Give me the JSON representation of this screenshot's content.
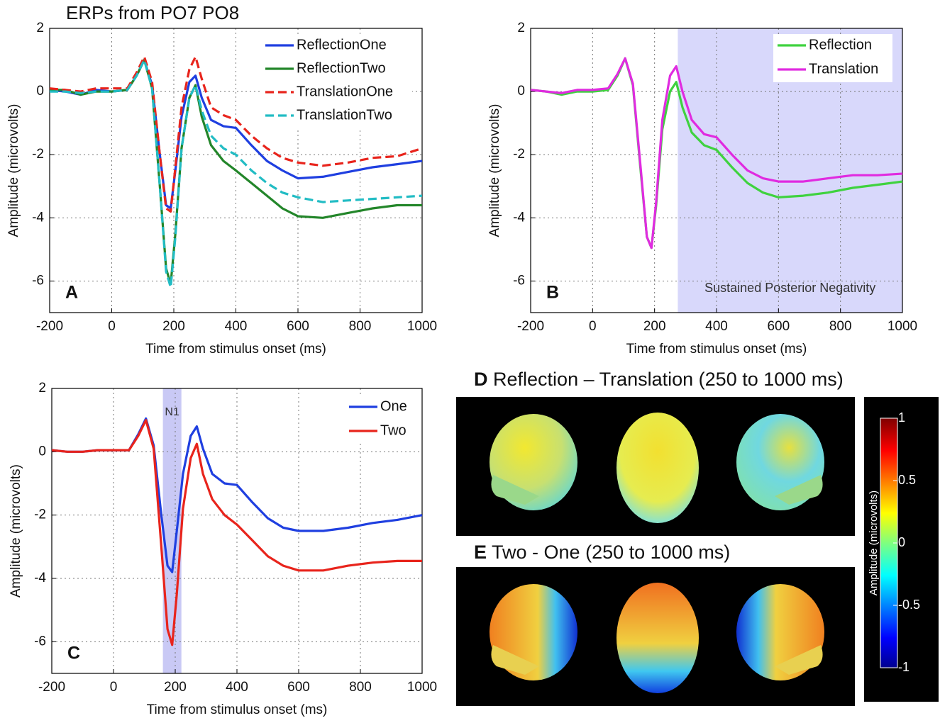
{
  "chart_data": [
    {
      "type": "line",
      "title": "ERPs from PO7 PO8",
      "panel_label": "A",
      "xlabel": "Time from stimulus onset (ms)",
      "ylabel": "Amplitude (microvolts)",
      "x": [
        -200,
        -150,
        -100,
        -50,
        0,
        50,
        80,
        105,
        130,
        155,
        175,
        190,
        205,
        225,
        250,
        270,
        290,
        320,
        360,
        400,
        450,
        500,
        550,
        600,
        680,
        760,
        840,
        920,
        1000
      ],
      "series": [
        {
          "name": "ReflectionOne",
          "color": "#1f3fe0",
          "linestyle": "solid",
          "values": [
            0.05,
            0,
            -0.1,
            0.05,
            0,
            0.05,
            0.5,
            1.0,
            0.2,
            -2.0,
            -3.6,
            -3.7,
            -2.5,
            -0.8,
            0.3,
            0.5,
            -0.2,
            -0.9,
            -1.1,
            -1.15,
            -1.7,
            -2.2,
            -2.5,
            -2.75,
            -2.7,
            -2.55,
            -2.4,
            -2.3,
            -2.2
          ]
        },
        {
          "name": "ReflectionTwo",
          "color": "#23862a",
          "linestyle": "solid",
          "values": [
            0.05,
            0.05,
            -0.1,
            0,
            0,
            0.05,
            0.5,
            1.0,
            0.1,
            -3,
            -5.6,
            -6.1,
            -4.5,
            -1.8,
            -0.2,
            0.2,
            -0.8,
            -1.7,
            -2.2,
            -2.5,
            -2.9,
            -3.3,
            -3.7,
            -3.95,
            -4.0,
            -3.85,
            -3.7,
            -3.6,
            -3.6
          ]
        },
        {
          "name": "TranslationOne",
          "color": "#e8241c",
          "linestyle": "dashed",
          "values": [
            0.1,
            0.05,
            0,
            0.1,
            0.1,
            0.1,
            0.6,
            1.1,
            0.3,
            -2.0,
            -3.7,
            -3.8,
            -2.4,
            -0.5,
            0.7,
            1.1,
            0.4,
            -0.5,
            -0.75,
            -0.9,
            -1.4,
            -1.8,
            -2.1,
            -2.25,
            -2.35,
            -2.25,
            -2.1,
            -2.05,
            -1.8
          ]
        },
        {
          "name": "TranslationTwo",
          "color": "#22bcc4",
          "linestyle": "dashed",
          "values": [
            0,
            0,
            -0.05,
            0,
            0,
            0.05,
            0.5,
            1.0,
            0.1,
            -3,
            -5.7,
            -6.2,
            -4.6,
            -1.8,
            -0.2,
            0.2,
            -0.6,
            -1.4,
            -1.8,
            -2.0,
            -2.5,
            -2.9,
            -3.2,
            -3.35,
            -3.5,
            -3.45,
            -3.4,
            -3.35,
            -3.3
          ]
        }
      ],
      "xlim": [
        -200,
        1000
      ],
      "xticks": [
        -200,
        0,
        200,
        400,
        600,
        800,
        1000
      ],
      "ylim": [
        -7,
        2
      ],
      "yticks": [
        -6,
        -4,
        -2,
        0,
        2
      ],
      "grid": true,
      "legend": "upper right"
    },
    {
      "type": "line",
      "panel_label": "B",
      "xlabel": "Time from stimulus onset (ms)",
      "ylabel": "Amplitude (microvolts)",
      "x": [
        -200,
        -150,
        -100,
        -50,
        0,
        50,
        80,
        105,
        130,
        155,
        175,
        190,
        205,
        225,
        250,
        270,
        290,
        320,
        360,
        400,
        450,
        500,
        550,
        600,
        680,
        760,
        840,
        920,
        1000
      ],
      "series": [
        {
          "name": "Reflection",
          "color": "#3fd23f",
          "linestyle": "solid",
          "values": [
            0.05,
            0,
            -0.1,
            0,
            0,
            0.05,
            0.5,
            1.05,
            0.2,
            -2.5,
            -4.6,
            -4.95,
            -3.6,
            -1.2,
            0,
            0.3,
            -0.5,
            -1.3,
            -1.7,
            -1.85,
            -2.4,
            -2.9,
            -3.2,
            -3.35,
            -3.3,
            -3.2,
            -3.05,
            -2.95,
            -2.85
          ]
        },
        {
          "name": "Translation",
          "color": "#e02be0",
          "linestyle": "solid",
          "values": [
            0.05,
            0,
            -0.05,
            0.05,
            0.05,
            0.1,
            0.55,
            1.05,
            0.25,
            -2.4,
            -4.6,
            -4.95,
            -3.5,
            -0.9,
            0.5,
            0.8,
            0,
            -0.9,
            -1.35,
            -1.45,
            -2.0,
            -2.5,
            -2.75,
            -2.85,
            -2.85,
            -2.75,
            -2.65,
            -2.65,
            -2.6
          ]
        }
      ],
      "highlight": {
        "x": [
          275,
          1000
        ],
        "label": "Sustained Posterior Negativity",
        "color": "#d8d8fb"
      },
      "xlim": [
        -200,
        1000
      ],
      "xticks": [
        -200,
        0,
        200,
        400,
        600,
        800,
        1000
      ],
      "ylim": [
        -7,
        2
      ],
      "yticks": [
        -6,
        -4,
        -2,
        0,
        2
      ],
      "grid": true,
      "legend": "upper right"
    },
    {
      "type": "line",
      "panel_label": "C",
      "xlabel": "Time from stimulus onset (ms)",
      "ylabel": "Amplitude (microvolts)",
      "x": [
        -200,
        -150,
        -100,
        -50,
        0,
        50,
        80,
        105,
        130,
        155,
        175,
        190,
        205,
        225,
        250,
        270,
        290,
        320,
        360,
        400,
        450,
        500,
        550,
        600,
        680,
        760,
        840,
        920,
        1000
      ],
      "series": [
        {
          "name": "One",
          "color": "#1f3fe0",
          "linestyle": "solid",
          "values": [
            0.05,
            0,
            0,
            0.05,
            0.05,
            0.05,
            0.55,
            1.05,
            0.2,
            -2,
            -3.6,
            -3.8,
            -2.5,
            -0.7,
            0.5,
            0.8,
            0.1,
            -0.7,
            -1.0,
            -1.05,
            -1.6,
            -2.1,
            -2.4,
            -2.5,
            -2.5,
            -2.4,
            -2.25,
            -2.15,
            -2.0
          ]
        },
        {
          "name": "Two",
          "color": "#e8241c",
          "linestyle": "solid",
          "values": [
            0.05,
            0,
            0,
            0.05,
            0.05,
            0.05,
            0.5,
            1.0,
            0.1,
            -3,
            -5.6,
            -6.1,
            -4.5,
            -1.8,
            -0.2,
            0.25,
            -0.7,
            -1.5,
            -2.0,
            -2.3,
            -2.8,
            -3.3,
            -3.6,
            -3.75,
            -3.75,
            -3.6,
            -3.5,
            -3.45,
            -3.45
          ]
        }
      ],
      "highlight": {
        "x": [
          160,
          220
        ],
        "label": "N1",
        "color": "#c9c9f5"
      },
      "xlim": [
        -200,
        1000
      ],
      "xticks": [
        -200,
        0,
        200,
        400,
        600,
        800,
        1000
      ],
      "ylim": [
        -7,
        2
      ],
      "yticks": [
        -6,
        -4,
        -2,
        0,
        2
      ],
      "grid": true,
      "legend": "upper right"
    }
  ],
  "maps": {
    "D": {
      "letter": "D",
      "title": "Reflection – Translation (250 to 1000 ms)"
    },
    "E": {
      "letter": "E",
      "title": "Two - One (250 to 1000 ms)"
    },
    "colorbar": {
      "label": "Amplitude (microvolts)",
      "lim": [
        -1,
        1
      ],
      "ticks": [
        1,
        0.5,
        0,
        -0.5,
        -1
      ]
    }
  }
}
